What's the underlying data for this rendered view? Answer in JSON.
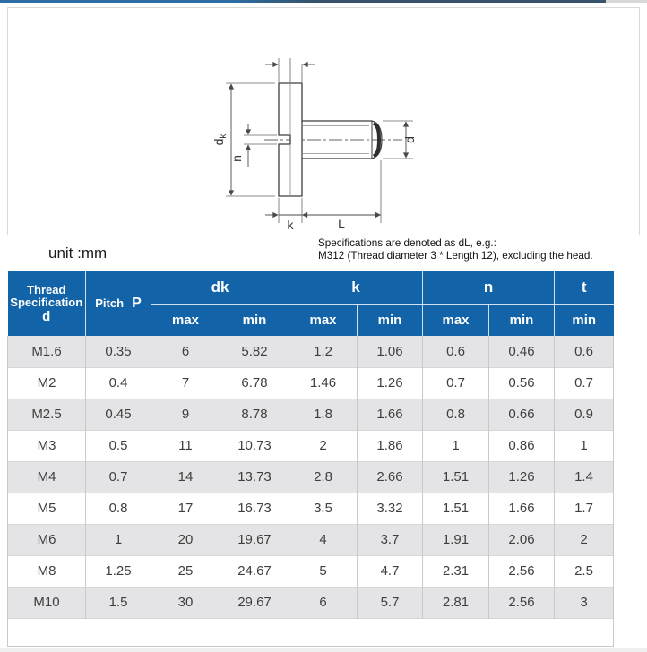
{
  "colors": {
    "header_blue": "#1263a8",
    "alt_row": "#e4e4e6",
    "row_text": "#3f3f3f",
    "border_light": "#c9c9c9",
    "box_border": "#d9d9d9",
    "strip_blue": "#2d6ca4",
    "strip_dark": "#36536b",
    "strip_gray": "#d8d8d8"
  },
  "drawing": {
    "labels": {
      "dk_main": "d",
      "dk_sub": "k",
      "n": "n",
      "k": "k",
      "L": "L",
      "d": "d"
    }
  },
  "note": {
    "unit": "unit :mm",
    "spec_line1": "Specifications are denoted as dL, e.g.:",
    "spec_line2": "M312 (Thread diameter 3 * Length 12), excluding the head."
  },
  "table": {
    "header": {
      "col1_line1": "Thread",
      "col1_line2": "Specification",
      "col1_line3": "d",
      "pitch_label": "Pitch",
      "pitch_symbol": "P",
      "groups": [
        "dk",
        "k",
        "n",
        "t"
      ],
      "sub": [
        "max",
        "min",
        "max",
        "min",
        "max",
        "min",
        "min"
      ]
    },
    "rows": [
      [
        "M1.6",
        "0.35",
        "6",
        "5.82",
        "1.2",
        "1.06",
        "0.6",
        "0.46",
        "0.6"
      ],
      [
        "M2",
        "0.4",
        "7",
        "6.78",
        "1.46",
        "1.26",
        "0.7",
        "0.56",
        "0.7"
      ],
      [
        "M2.5",
        "0.45",
        "9",
        "8.78",
        "1.8",
        "1.66",
        "0.8",
        "0.66",
        "0.9"
      ],
      [
        "M3",
        "0.5",
        "11",
        "10.73",
        "2",
        "1.86",
        "1",
        "0.86",
        "1"
      ],
      [
        "M4",
        "0.7",
        "14",
        "13.73",
        "2.8",
        "2.66",
        "1.51",
        "1.26",
        "1.4"
      ],
      [
        "M5",
        "0.8",
        "17",
        "16.73",
        "3.5",
        "3.32",
        "1.51",
        "1.66",
        "1.7"
      ],
      [
        "M6",
        "1",
        "20",
        "19.67",
        "4",
        "3.7",
        "1.91",
        "2.06",
        "2"
      ],
      [
        "M8",
        "1.25",
        "25",
        "24.67",
        "5",
        "4.7",
        "2.31",
        "2.56",
        "2.5"
      ],
      [
        "M10",
        "1.5",
        "30",
        "29.67",
        "6",
        "5.7",
        "2.81",
        "2.56",
        "3"
      ]
    ]
  }
}
